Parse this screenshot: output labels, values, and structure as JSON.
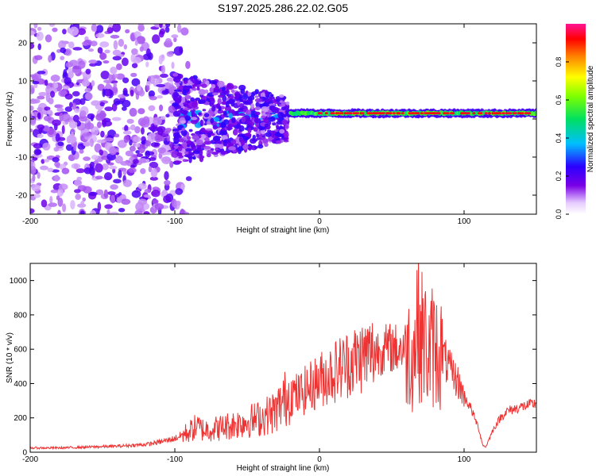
{
  "title": "S197.2025.286.22.02.G05",
  "chart_data": [
    {
      "type": "heatmap",
      "title": "S197.2025.286.22.02.G05",
      "xlabel": "Height of straight line (km)",
      "ylabel": "Frequency (Hz)",
      "xlim": [
        -200,
        150
      ],
      "ylim": [
        -25,
        25
      ],
      "xticks": [
        -200,
        -100,
        0,
        100
      ],
      "yticks": [
        -20,
        -10,
        0,
        10,
        20
      ],
      "colorbar": {
        "label": "Normalized spectral amplitude",
        "range": [
          0,
          1
        ],
        "ticks": [
          0,
          0.2,
          0.4,
          0.6,
          0.8
        ],
        "tick_labels": [
          "0.0",
          "0.2",
          "0.4",
          "0.6",
          "0.8"
        ],
        "colormap": "rainbow (white/lavender at 0, violet, blue, cyan, green, yellow, red, magenta at 1)"
      },
      "description_series": [
        {
          "name": "scattered noise region",
          "x_range": [
            -200,
            -100
          ],
          "freq_range": [
            -25,
            25
          ],
          "amplitude": 0.15
        },
        {
          "name": "transition blob",
          "x_range": [
            -100,
            -25
          ],
          "freq_range": [
            -10,
            8
          ],
          "amplitude": 0.3
        },
        {
          "name": "signal line",
          "x_range": [
            -20,
            150
          ],
          "center_freq": 1.5,
          "amplitude": 0.9
        }
      ]
    },
    {
      "type": "line",
      "title": "",
      "xlabel": "Height of straight line (km)",
      "ylabel": "SNR (10 * v/v)",
      "xlim": [
        -200,
        150
      ],
      "ylim": [
        0,
        1100
      ],
      "xticks": [
        -200,
        -100,
        0,
        100
      ],
      "yticks": [
        0,
        200,
        400,
        600,
        800,
        1000
      ],
      "series": [
        {
          "name": "SNR",
          "color": "#ee3333",
          "x": [
            -200,
            -180,
            -160,
            -140,
            -120,
            -110,
            -100,
            -90,
            -85,
            -80,
            -70,
            -60,
            -50,
            -40,
            -30,
            -25,
            -20,
            -15,
            -10,
            -5,
            0,
            10,
            20,
            30,
            40,
            50,
            55,
            60,
            65,
            68,
            70,
            72,
            75,
            78,
            80,
            85,
            90,
            95,
            100,
            105,
            110,
            113,
            115,
            120,
            125,
            130,
            140,
            150
          ],
          "values": [
            25,
            25,
            30,
            35,
            45,
            60,
            80,
            120,
            150,
            130,
            140,
            160,
            180,
            200,
            240,
            300,
            350,
            330,
            360,
            390,
            420,
            470,
            520,
            560,
            590,
            610,
            600,
            620,
            560,
            800,
            650,
            700,
            560,
            620,
            600,
            570,
            480,
            420,
            330,
            250,
            140,
            40,
            30,
            130,
            200,
            240,
            265,
            285
          ]
        }
      ]
    }
  ]
}
